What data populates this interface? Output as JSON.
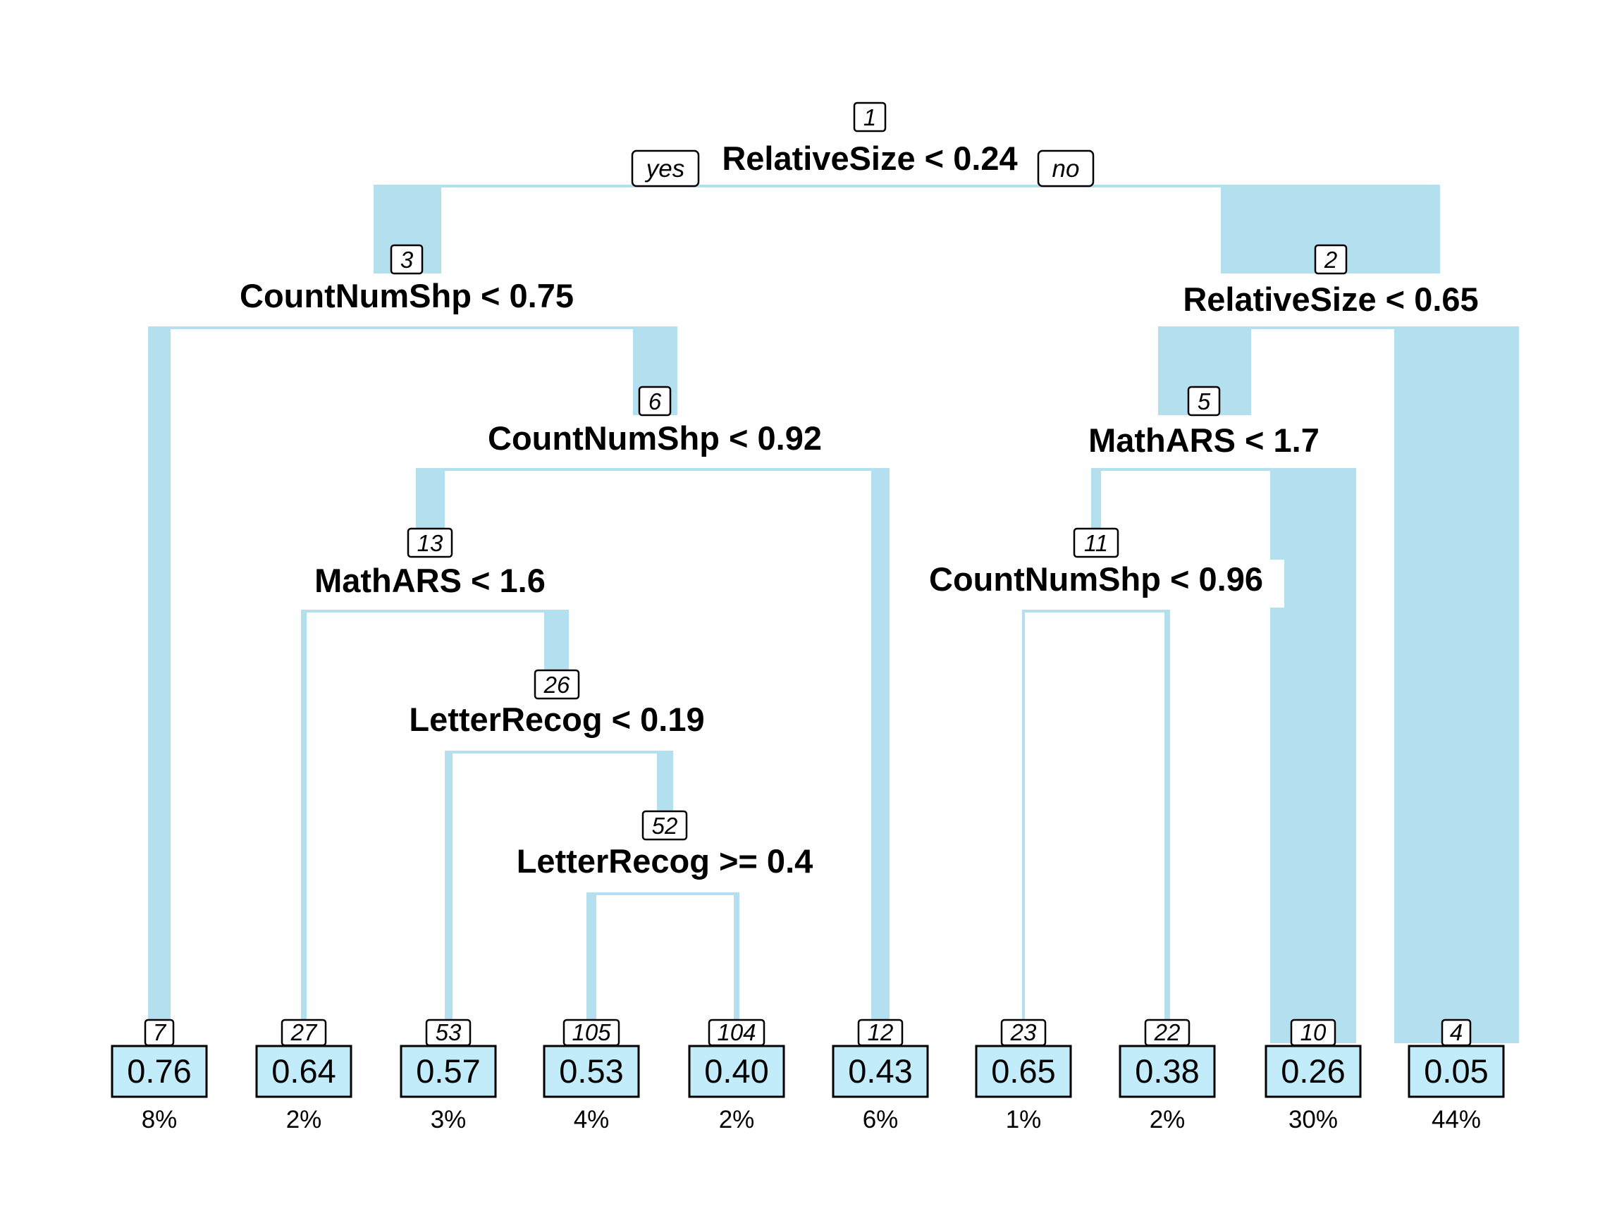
{
  "colors": {
    "branch_fill": "#b3dfee",
    "leaf_fill": "#c3ecfa",
    "text": "#000000",
    "background": "#ffffff"
  },
  "root_branch_labels": {
    "yes": "yes",
    "no": "no"
  },
  "splits": [
    {
      "id": "1",
      "label": "RelativeSize < 0.24"
    },
    {
      "id": "3",
      "label": "CountNumShp < 0.75"
    },
    {
      "id": "2",
      "label": "RelativeSize < 0.65"
    },
    {
      "id": "6",
      "label": "CountNumShp < 0.92"
    },
    {
      "id": "5",
      "label": "MathARS < 1.7"
    },
    {
      "id": "13",
      "label": "MathARS < 1.6"
    },
    {
      "id": "11",
      "label": "CountNumShp < 0.96"
    },
    {
      "id": "26",
      "label": "LetterRecog < 0.19"
    },
    {
      "id": "52",
      "label": "LetterRecog >= 0.4"
    }
  ],
  "leaves": [
    {
      "id": "7",
      "value": "0.76",
      "percent": "8%"
    },
    {
      "id": "27",
      "value": "0.64",
      "percent": "2%"
    },
    {
      "id": "53",
      "value": "0.57",
      "percent": "3%"
    },
    {
      "id": "105",
      "value": "0.53",
      "percent": "4%"
    },
    {
      "id": "104",
      "value": "0.40",
      "percent": "2%"
    },
    {
      "id": "12",
      "value": "0.43",
      "percent": "6%"
    },
    {
      "id": "23",
      "value": "0.65",
      "percent": "1%"
    },
    {
      "id": "22",
      "value": "0.38",
      "percent": "2%"
    },
    {
      "id": "10",
      "value": "0.26",
      "percent": "30%"
    },
    {
      "id": "4",
      "value": "0.05",
      "percent": "44%"
    }
  ]
}
